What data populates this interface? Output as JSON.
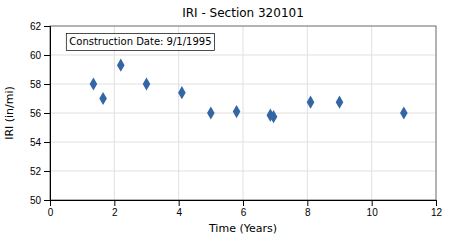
{
  "chart_data": {
    "type": "scatter",
    "title": "IRI - Section 320101",
    "x_label": "Time (Years)",
    "y_label": "IRI (in/mi)",
    "annotation": "Construction Date: 9/1/1995",
    "x": [
      1.35,
      1.65,
      2.2,
      3.0,
      4.1,
      5.0,
      5.8,
      6.85,
      6.95,
      8.1,
      9.0,
      11.0
    ],
    "values": [
      58.0,
      57.0,
      59.3,
      58.0,
      57.4,
      56.0,
      56.1,
      55.85,
      55.75,
      56.75,
      56.75,
      56.0
    ],
    "xlim": [
      0,
      12
    ],
    "ylim": [
      50,
      62
    ],
    "xticks": [
      0,
      2,
      4,
      6,
      8,
      10,
      12
    ],
    "yticks": [
      50,
      52,
      54,
      56,
      58,
      60,
      62
    ],
    "grid": true,
    "color": "#3465a4",
    "marker": "diamond"
  }
}
